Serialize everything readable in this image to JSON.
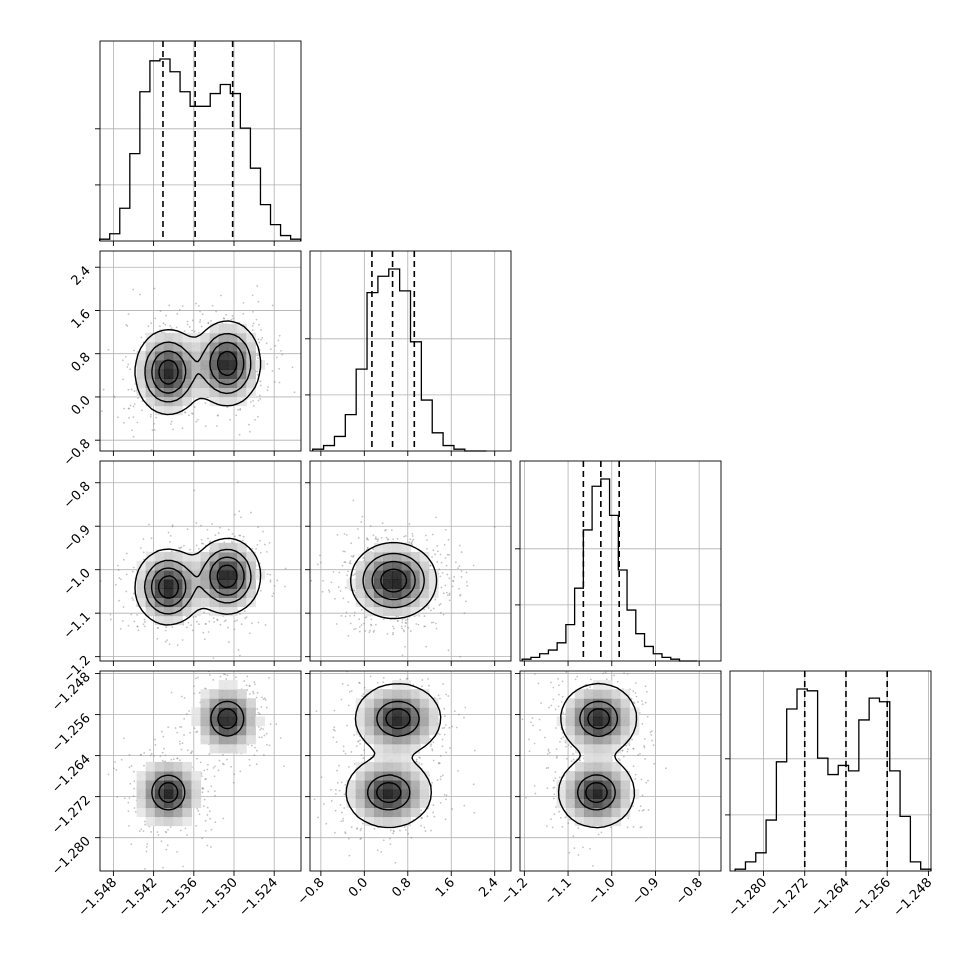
{
  "chart_data": {
    "type": "scatter",
    "layout": "corner-plot",
    "grid": true,
    "colors": {
      "axis": "#000000",
      "grid": "#b0b0b0",
      "points": "#7a7a7a",
      "density_low": "#ffffff",
      "density_high": "#000000"
    },
    "parameters": [
      {
        "range": [
          -1.55,
          -1.52
        ],
        "ticks": [
          -1.548,
          -1.542,
          -1.536,
          -1.53,
          -1.524
        ],
        "tick_labels": [
          "−1.548",
          "−1.542",
          "−1.536",
          "−1.530",
          "−1.524"
        ],
        "quantiles": [
          -1.5406,
          -1.5358,
          -1.5302
        ],
        "mode": "bimodal",
        "modes": [
          -1.5398,
          -1.531
        ],
        "sigma": 0.0024,
        "hist_x": [
          -1.5493,
          -1.5478,
          -1.5463,
          -1.5448,
          -1.5433,
          -1.5418,
          -1.5403,
          -1.5388,
          -1.5373,
          -1.5358,
          -1.5343,
          -1.5328,
          -1.5313,
          -1.5298,
          -1.5283,
          -1.5268,
          -1.5253,
          -1.5238,
          -1.5223,
          -1.5208
        ],
        "hist_values": [
          0.01,
          0.04,
          0.18,
          0.48,
          0.82,
          0.99,
          1.0,
          0.93,
          0.82,
          0.74,
          0.74,
          0.81,
          0.86,
          0.81,
          0.62,
          0.4,
          0.2,
          0.09,
          0.03,
          0.01
        ]
      },
      {
        "range": [
          -1.0,
          2.7
        ],
        "ticks": [
          -0.8,
          0.0,
          0.8,
          1.6,
          2.4
        ],
        "tick_labels": [
          "−0.8",
          "0.0",
          "0.8",
          "1.6",
          "2.4"
        ],
        "quantiles": [
          0.14,
          0.52,
          0.92
        ],
        "mode": "unimodal",
        "modes": [
          0.54
        ],
        "sigma": 0.38,
        "hist_x": [
          -0.85,
          -0.65,
          -0.45,
          -0.25,
          -0.05,
          0.15,
          0.35,
          0.55,
          0.75,
          0.95,
          1.15,
          1.35,
          1.55,
          1.75,
          1.95,
          2.15
        ],
        "hist_values": [
          0.01,
          0.03,
          0.08,
          0.2,
          0.45,
          0.87,
          0.96,
          1.0,
          0.88,
          0.6,
          0.28,
          0.1,
          0.03,
          0.01,
          0.0,
          0.0
        ]
      },
      {
        "range": [
          -1.21,
          -0.75
        ],
        "ticks": [
          -0.8,
          -0.9,
          -1.0,
          -1.1,
          -1.2
        ],
        "tick_labels": [
          "−0.8",
          "−0.9",
          "−1.0",
          "−1.1",
          "−1.2"
        ],
        "tick_labels_x": [
          "−1.2",
          "−1.1",
          "−1.0",
          "−0.9",
          "−0.8"
        ],
        "quantiles": [
          -1.065,
          -1.025,
          -0.983
        ],
        "mode": "unimodal",
        "modes": [
          -1.024
        ],
        "sigma": 0.042,
        "hist_x": [
          -1.195,
          -1.175,
          -1.155,
          -1.135,
          -1.115,
          -1.095,
          -1.075,
          -1.055,
          -1.035,
          -1.015,
          -0.995,
          -0.975,
          -0.955,
          -0.935,
          -0.915,
          -0.895,
          -0.875,
          -0.855,
          -0.835,
          -0.815
        ],
        "hist_values": [
          0.01,
          0.02,
          0.04,
          0.06,
          0.1,
          0.2,
          0.4,
          0.72,
          0.96,
          1.0,
          0.8,
          0.5,
          0.28,
          0.15,
          0.08,
          0.04,
          0.02,
          0.01,
          0.0,
          0.0
        ]
      },
      {
        "range": [
          -1.2865,
          -1.2475
        ],
        "ticks": [
          -1.28,
          -1.272,
          -1.264,
          -1.256,
          -1.248
        ],
        "tick_labels": [
          "−1.280",
          "−1.272",
          "−1.264",
          "−1.256",
          "−1.248"
        ],
        "quantiles": [
          -1.272,
          -1.264,
          -1.256
        ],
        "mode": "bimodal",
        "modes": [
          -1.2712,
          -1.2568
        ],
        "sigma": 0.0033,
        "hist_x": [
          -1.2845,
          -1.2825,
          -1.2805,
          -1.2785,
          -1.2765,
          -1.2745,
          -1.2725,
          -1.2705,
          -1.2685,
          -1.2665,
          -1.2645,
          -1.2625,
          -1.2605,
          -1.2585,
          -1.2565,
          -1.2545,
          -1.2525,
          -1.2505,
          -1.2485
        ],
        "hist_values": [
          0.01,
          0.05,
          0.1,
          0.28,
          0.6,
          0.89,
          1.0,
          0.99,
          0.62,
          0.53,
          0.58,
          0.55,
          0.83,
          0.95,
          0.93,
          0.55,
          0.3,
          0.05,
          0.01
        ]
      }
    ],
    "pairs": [
      {
        "row": 1,
        "col": 0,
        "corr": 0.0,
        "joint_modes": [
          [
            -1.5398,
            0.46
          ],
          [
            -1.531,
            0.62
          ]
        ]
      },
      {
        "row": 2,
        "col": 0,
        "corr": 0.0,
        "joint_modes": [
          [
            -1.5398,
            -1.04
          ],
          [
            -1.531,
            -1.015
          ]
        ]
      },
      {
        "row": 2,
        "col": 1,
        "corr": 0.0,
        "joint_modes": [
          [
            0.54,
            -1.025
          ]
        ]
      },
      {
        "row": 3,
        "col": 0,
        "corr": 0.0,
        "joint_modes": [
          [
            -1.5398,
            -1.2712
          ],
          [
            -1.531,
            -1.2568
          ]
        ]
      },
      {
        "row": 3,
        "col": 1,
        "corr": 0.0,
        "joint_modes": [
          [
            0.45,
            -1.2712
          ],
          [
            0.62,
            -1.2568
          ]
        ]
      },
      {
        "row": 3,
        "col": 2,
        "corr": 0.0,
        "joint_modes": [
          [
            -1.035,
            -1.2712
          ],
          [
            -1.03,
            -1.2568
          ]
        ]
      }
    ]
  }
}
